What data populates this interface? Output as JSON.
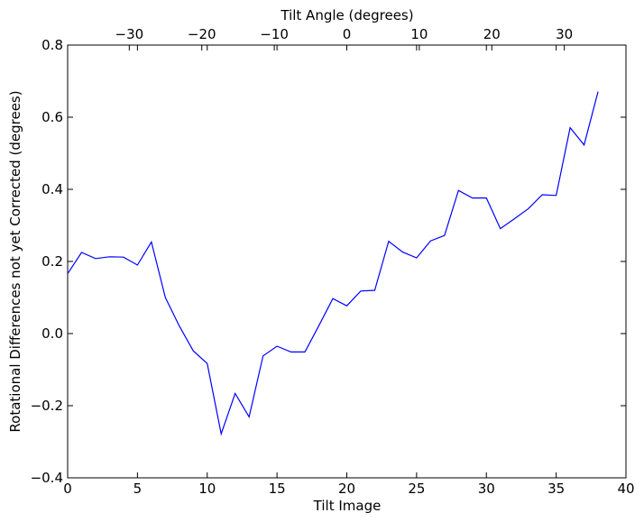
{
  "chart_data": {
    "type": "line",
    "xlabel": "Tilt Image",
    "ylabel": "Rotational Differences not yet Corrected (degrees)",
    "top_xlabel": "Tilt Angle (degrees)",
    "xlim": [
      0,
      40
    ],
    "ylim": [
      -0.4,
      0.8
    ],
    "top_xlim": [
      -38.5,
      38.5
    ],
    "x_ticks": [
      0,
      5,
      10,
      15,
      20,
      25,
      30,
      35,
      40
    ],
    "y_ticks": [
      -0.4,
      -0.2,
      0.0,
      0.2,
      0.4,
      0.6,
      0.8
    ],
    "y_tick_labels": [
      "−0.4",
      "−0.2",
      "0.0",
      "0.2",
      "0.4",
      "0.6",
      "0.8"
    ],
    "top_x_ticks": [
      -30,
      -20,
      -10,
      0,
      10,
      20,
      30
    ],
    "top_x_tick_labels": [
      "−30",
      "−20",
      "−10",
      "0",
      "10",
      "20",
      "30"
    ],
    "grid": false,
    "line_color": "#0000ff",
    "series": [
      {
        "x": [
          0,
          1,
          2,
          3,
          4,
          5,
          6,
          7,
          8,
          9,
          10,
          11,
          12,
          13,
          14,
          15,
          16,
          17,
          18,
          19,
          20,
          21,
          22,
          23,
          24,
          25,
          26,
          27,
          28,
          29,
          30,
          31,
          32,
          33,
          34,
          35,
          36,
          37,
          38
        ],
        "values": [
          0.166,
          0.225,
          0.208,
          0.213,
          0.212,
          0.19,
          0.254,
          0.1,
          0.021,
          -0.048,
          -0.083,
          -0.278,
          -0.166,
          -0.231,
          -0.062,
          -0.035,
          -0.051,
          -0.051,
          0.022,
          0.097,
          0.077,
          0.118,
          0.12,
          0.256,
          0.226,
          0.21,
          0.257,
          0.272,
          0.397,
          0.376,
          0.376,
          0.291,
          0.318,
          0.346,
          0.385,
          0.383,
          0.571,
          0.523,
          0.671
        ]
      }
    ]
  }
}
